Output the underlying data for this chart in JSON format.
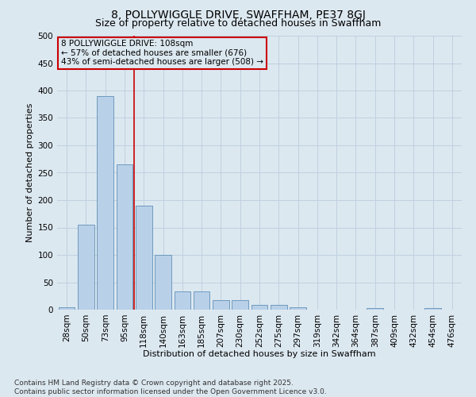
{
  "title": "8, POLLYWIGGLE DRIVE, SWAFFHAM, PE37 8GJ",
  "subtitle": "Size of property relative to detached houses in Swaffham",
  "xlabel": "Distribution of detached houses by size in Swaffham",
  "ylabel": "Number of detached properties",
  "categories": [
    "28sqm",
    "50sqm",
    "73sqm",
    "95sqm",
    "118sqm",
    "140sqm",
    "163sqm",
    "185sqm",
    "207sqm",
    "230sqm",
    "252sqm",
    "275sqm",
    "297sqm",
    "319sqm",
    "342sqm",
    "364sqm",
    "387sqm",
    "409sqm",
    "432sqm",
    "454sqm",
    "476sqm"
  ],
  "values": [
    5,
    155,
    390,
    265,
    190,
    100,
    33,
    33,
    18,
    18,
    8,
    8,
    5,
    0,
    0,
    0,
    3,
    0,
    0,
    3,
    0
  ],
  "bar_color": "#b8d0e8",
  "bar_edge_color": "#6090b8",
  "grid_color": "#c0d0e0",
  "background_color": "#dce8f0",
  "red_line_x": 3.5,
  "annotation_box_text_line1": "8 POLLYWIGGLE DRIVE: 108sqm",
  "annotation_box_text_line2": "← 57% of detached houses are smaller (676)",
  "annotation_box_text_line3": "43% of semi-detached houses are larger (508) →",
  "annotation_box_color": "#cc0000",
  "ylim": [
    0,
    500
  ],
  "yticks": [
    0,
    50,
    100,
    150,
    200,
    250,
    300,
    350,
    400,
    450,
    500
  ],
  "footer_text": "Contains HM Land Registry data © Crown copyright and database right 2025.\nContains public sector information licensed under the Open Government Licence v3.0.",
  "title_fontsize": 10,
  "subtitle_fontsize": 9,
  "xlabel_fontsize": 8,
  "ylabel_fontsize": 8,
  "tick_fontsize": 7.5,
  "annotation_fontsize": 7.5,
  "footer_fontsize": 6.5
}
